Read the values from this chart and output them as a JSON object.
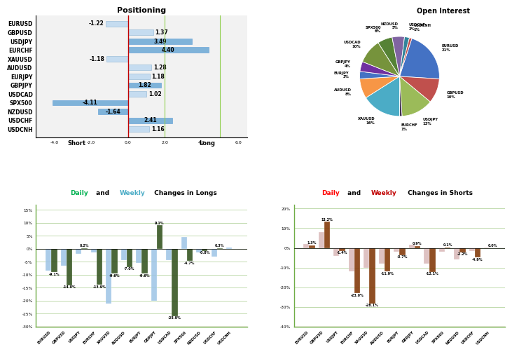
{
  "positioning": {
    "labels": [
      "EURUSD",
      "GBPUSD",
      "USDJPY",
      "EURCHF",
      "XAUUSD",
      "AUDUSD",
      "EURJPY",
      "GBPJPY",
      "USDCAD",
      "SPX500",
      "NZDUSD",
      "USDCHF",
      "USDCNH"
    ],
    "values": [
      -1.22,
      1.37,
      3.49,
      4.4,
      -1.18,
      1.28,
      1.18,
      1.82,
      1.02,
      -4.11,
      -1.64,
      2.41,
      1.16
    ],
    "title": "Positioning",
    "xlim": [
      -5.0,
      6.5
    ],
    "bar_color": "#7FB3D9",
    "bar_edge": "#5B9BD5",
    "vline_red": "#C00000",
    "vline_green": "#92D050"
  },
  "open_interest": {
    "labels": [
      "EURUSD",
      "GBPUSD",
      "USDJPY",
      "EURCHF",
      "XAUUSD",
      "AUDUSD",
      "EURJPY",
      "GBPJPY",
      "USDCAD",
      "SPX500",
      "NZDUSD",
      "USDCHF",
      "USDCNH"
    ],
    "values": [
      21,
      10,
      13,
      1,
      16,
      8,
      3,
      4,
      10,
      6,
      5,
      2,
      1
    ],
    "colors": [
      "#4472C4",
      "#C0504D",
      "#9BBB59",
      "#403151",
      "#4BACC6",
      "#F79646",
      "#4472C4",
      "#7030A0",
      "#76933C",
      "#558235",
      "#8064A2",
      "#31849B",
      "#BE4B48"
    ],
    "title": "Open Interest"
  },
  "longs": {
    "labels": [
      "EURUSD",
      "GBPUSD",
      "USDJPY",
      "EURCHF",
      "XAUUSD",
      "AUDUSD",
      "EURJPY",
      "GBPJPY",
      "USDCAD",
      "SPX500",
      "NZDUSD",
      "USDCHF",
      "USDCNH"
    ],
    "daily": [
      -9.1,
      -14.0,
      0.2,
      -13.9,
      -9.6,
      -7.0,
      -9.6,
      9.1,
      -25.9,
      -4.7,
      -0.8,
      0.3,
      0.0
    ],
    "weekly": [
      -8.5,
      -6.5,
      -2.0,
      -1.5,
      -21.0,
      -4.5,
      -5.5,
      -20.0,
      -4.5,
      4.5,
      -1.5,
      -3.0,
      0.5
    ],
    "ylim": [
      -30,
      17
    ],
    "yticks": [
      -30,
      -25,
      -20,
      -15,
      -10,
      -5,
      0,
      5,
      10,
      15
    ],
    "color_daily": "#375623",
    "color_weekly": "#9DC3E6",
    "title_daily_color": "#00B050",
    "title_weekly_color": "#4BACC6",
    "grid_color": "#70AD47",
    "border_color": "#70AD47",
    "hline_color": "#C00000"
  },
  "shorts": {
    "labels": [
      "EURUSD",
      "GBPUSD",
      "USDJPY",
      "EURCHF",
      "XAUUSD",
      "AUDUSD",
      "EURJPY",
      "GBPJPY",
      "USDCAD",
      "SPX500",
      "NZDUSD",
      "USDCHF",
      "USDCNH"
    ],
    "daily": [
      1.3,
      13.2,
      -1.4,
      -23.0,
      -28.1,
      -11.9,
      -3.7,
      0.9,
      -12.1,
      0.1,
      -2.2,
      -4.9,
      0.0
    ],
    "weekly": [
      2.0,
      8.0,
      -4.0,
      -12.0,
      -10.0,
      -8.0,
      -2.0,
      1.5,
      -8.0,
      -2.0,
      -6.0,
      -1.5,
      0.3
    ],
    "ylim": [
      -40,
      22
    ],
    "yticks": [
      -40,
      -30,
      -20,
      -10,
      0,
      10,
      20
    ],
    "color_daily": "#843C0C",
    "color_weekly": "#D9B8B8",
    "title_daily_color": "#FF0000",
    "title_weekly_color": "#C00000",
    "grid_color": "#70AD47",
    "border_color": "#70AD47",
    "hline_color": "#C00000"
  }
}
